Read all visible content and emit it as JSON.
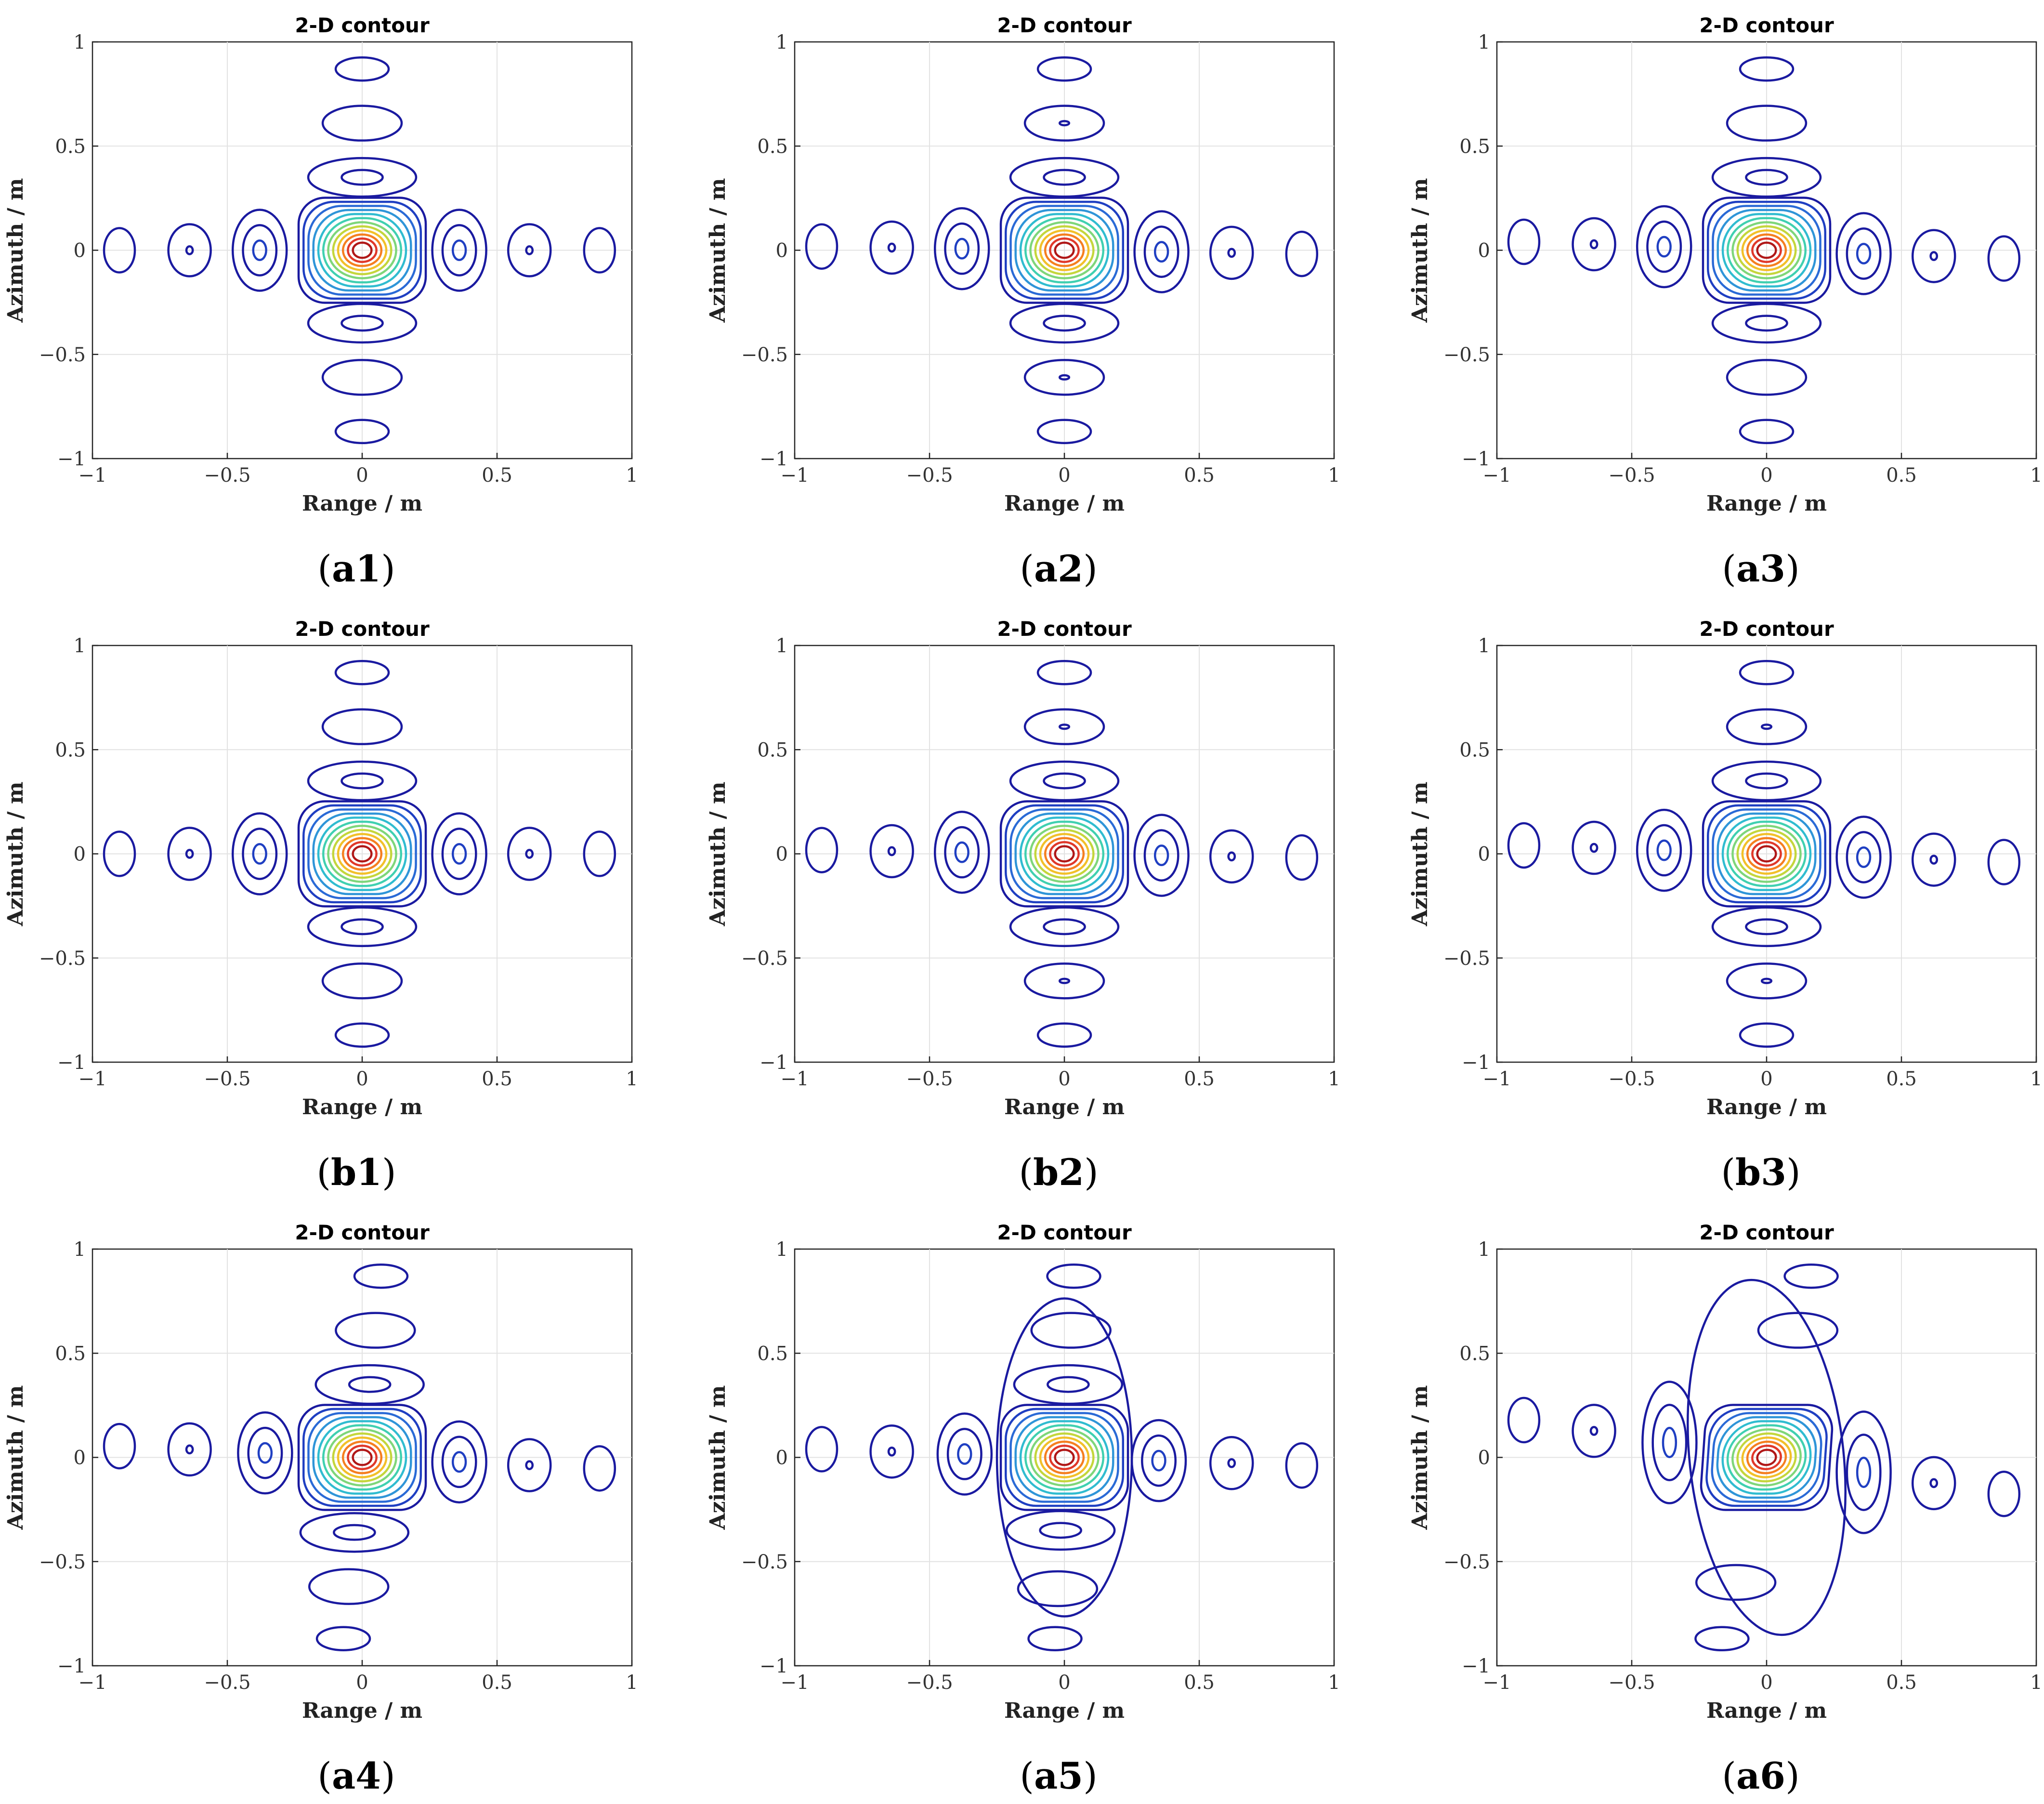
{
  "figure": {
    "panels": [
      {
        "id": "a1",
        "caption_letter": "a",
        "caption_number": "1"
      },
      {
        "id": "a2",
        "caption_letter": "a",
        "caption_number": "2"
      },
      {
        "id": "a3",
        "caption_letter": "a",
        "caption_number": "3"
      },
      {
        "id": "b1",
        "caption_letter": "b",
        "caption_number": "1"
      },
      {
        "id": "b2",
        "caption_letter": "b",
        "caption_number": "2"
      },
      {
        "id": "b3",
        "caption_letter": "b",
        "caption_number": "3"
      },
      {
        "id": "a4",
        "caption_letter": "a",
        "caption_number": "4"
      },
      {
        "id": "a5",
        "caption_letter": "a",
        "caption_number": "5"
      },
      {
        "id": "a6",
        "caption_letter": "a",
        "caption_number": "6"
      }
    ]
  },
  "chart_data": [
    {
      "panel": "a1",
      "type": "contour",
      "title": "2-D contour",
      "xlabel": "Range / m",
      "ylabel": "Azimuth / m",
      "xlim": [
        -1,
        1
      ],
      "ylim": [
        -1,
        1
      ],
      "xticks": [
        "−1",
        "−0.5",
        "0",
        "0.5",
        "1"
      ],
      "yticks": [
        "−1",
        "−0.5",
        "0",
        "0.5",
        "1"
      ],
      "grid": true,
      "peak": [
        0,
        0
      ],
      "range_sidelobes_x": [
        -0.9,
        -0.64,
        -0.38,
        0.36,
        0.62,
        0.88
      ],
      "azimuth_sidelobes_y": [
        0.87,
        0.61,
        0.35,
        -0.35,
        -0.61,
        -0.87
      ],
      "distortion": "none"
    },
    {
      "panel": "a2",
      "type": "contour",
      "title": "2-D contour",
      "xlabel": "Range / m",
      "ylabel": "Azimuth / m",
      "xlim": [
        -1,
        1
      ],
      "ylim": [
        -1,
        1
      ],
      "xticks": [
        "−1",
        "−0.5",
        "0",
        "0.5",
        "1"
      ],
      "yticks": [
        "−1",
        "−0.5",
        "0",
        "0.5",
        "1"
      ],
      "grid": true,
      "peak": [
        0,
        0
      ],
      "range_sidelobes_x": [
        -0.9,
        -0.64,
        -0.38,
        0.36,
        0.62,
        0.88
      ],
      "azimuth_sidelobes_y": [
        0.87,
        0.61,
        0.35,
        -0.35,
        -0.61,
        -0.87
      ],
      "distortion": "slight range skew"
    },
    {
      "panel": "a3",
      "type": "contour",
      "title": "2-D contour",
      "xlabel": "Range / m",
      "ylabel": "Azimuth / m",
      "xlim": [
        -1,
        1
      ],
      "ylim": [
        -1,
        1
      ],
      "xticks": [
        "−1",
        "−0.5",
        "0",
        "0.5",
        "1"
      ],
      "yticks": [
        "−1",
        "−0.5",
        "0",
        "0.5",
        "1"
      ],
      "grid": true,
      "peak": [
        0,
        0
      ],
      "range_sidelobes_x": [
        -0.9,
        -0.64,
        -0.38,
        0.36,
        0.62,
        0.88
      ],
      "azimuth_sidelobes_y": [
        0.87,
        0.61,
        0.35,
        -0.35,
        -0.61,
        -0.87
      ],
      "distortion": "range skew"
    },
    {
      "panel": "b1",
      "type": "contour",
      "title": "2-D contour",
      "xlabel": "Range / m",
      "ylabel": "Azimuth / m",
      "xlim": [
        -1,
        1
      ],
      "ylim": [
        -1,
        1
      ],
      "xticks": [
        "−1",
        "−0.5",
        "0",
        "0.5",
        "1"
      ],
      "yticks": [
        "−1",
        "−0.5",
        "0",
        "0.5",
        "1"
      ],
      "grid": true,
      "peak": [
        0,
        0
      ],
      "range_sidelobes_x": [
        -0.9,
        -0.64,
        -0.38,
        0.36,
        0.62,
        0.88
      ],
      "azimuth_sidelobes_y": [
        0.87,
        0.61,
        0.35,
        -0.35,
        -0.61,
        -0.87
      ],
      "distortion": "none"
    },
    {
      "panel": "b2",
      "type": "contour",
      "title": "2-D contour",
      "xlabel": "Range / m",
      "ylabel": "Azimuth / m",
      "xlim": [
        -1,
        1
      ],
      "ylim": [
        -1,
        1
      ],
      "xticks": [
        "−1",
        "−0.5",
        "0",
        "0.5",
        "1"
      ],
      "yticks": [
        "−1",
        "−0.5",
        "0",
        "0.5",
        "1"
      ],
      "grid": true,
      "peak": [
        0,
        0
      ],
      "range_sidelobes_x": [
        -0.9,
        -0.64,
        -0.38,
        0.36,
        0.62,
        0.88
      ],
      "azimuth_sidelobes_y": [
        0.87,
        0.61,
        0.35,
        -0.35,
        -0.61,
        -0.87
      ],
      "distortion": "slight range skew"
    },
    {
      "panel": "b3",
      "type": "contour",
      "title": "2-D contour",
      "xlabel": "Range / m",
      "ylabel": "Azimuth / m",
      "xlim": [
        -1,
        1
      ],
      "ylim": [
        -1,
        1
      ],
      "xticks": [
        "−1",
        "−0.5",
        "0",
        "0.5",
        "1"
      ],
      "yticks": [
        "−1",
        "−0.5",
        "0",
        "0.5",
        "1"
      ],
      "grid": true,
      "peak": [
        0,
        0
      ],
      "range_sidelobes_x": [
        -0.9,
        -0.64,
        -0.38,
        0.36,
        0.62,
        0.88
      ],
      "azimuth_sidelobes_y": [
        0.87,
        0.61,
        0.35,
        -0.35,
        -0.61,
        -0.87
      ],
      "distortion": "range skew"
    },
    {
      "panel": "a4",
      "type": "contour",
      "title": "2-D contour",
      "xlabel": "Range / m",
      "ylabel": "Azimuth / m",
      "xlim": [
        -1,
        1
      ],
      "ylim": [
        -1,
        1
      ],
      "xticks": [
        "−1",
        "−0.5",
        "0",
        "0.5",
        "1"
      ],
      "yticks": [
        "−1",
        "−0.5",
        "0",
        "0.5",
        "1"
      ],
      "grid": true,
      "peak": [
        0,
        0
      ],
      "range_sidelobes_x": [
        -0.9,
        -0.64,
        -0.36,
        0.36,
        0.62,
        0.88
      ],
      "azimuth_sidelobes_y": [
        0.87,
        0.61,
        0.35,
        -0.36,
        -0.62,
        -0.87
      ],
      "distortion": "skewed sidelobes"
    },
    {
      "panel": "a5",
      "type": "contour",
      "title": "2-D contour",
      "xlabel": "Range / m",
      "ylabel": "Azimuth / m",
      "xlim": [
        -1,
        1
      ],
      "ylim": [
        -1,
        1
      ],
      "xticks": [
        "−1",
        "−0.5",
        "0",
        "0.5",
        "1"
      ],
      "yticks": [
        "−1",
        "−0.5",
        "0",
        "0.5",
        "1"
      ],
      "grid": true,
      "peak": [
        0,
        0
      ],
      "range_sidelobes_x": [
        -0.9,
        -0.64,
        -0.37,
        0.35,
        0.62,
        0.88
      ],
      "azimuth_sidelobes_y": [
        0.87,
        0.61,
        0.35,
        -0.35,
        -0.63,
        -0.87
      ],
      "distortion": "merged azimuth sidelobes"
    },
    {
      "panel": "a6",
      "type": "contour",
      "title": "2-D contour",
      "xlabel": "Range / m",
      "ylabel": "Azimuth / m",
      "xlim": [
        -1,
        1
      ],
      "ylim": [
        -1,
        1
      ],
      "xticks": [
        "−1",
        "−0.5",
        "0",
        "0.5",
        "1"
      ],
      "yticks": [
        "−1",
        "−0.5",
        "0",
        "0.5",
        "1"
      ],
      "grid": true,
      "peak": [
        0,
        0
      ],
      "range_sidelobes_x": [
        -0.9,
        -0.64,
        -0.36,
        0.36,
        0.62,
        0.88
      ],
      "azimuth_sidelobes_y": [
        0.87,
        0.61,
        -0.6,
        -0.87
      ],
      "distortion": "strongly defocused, merged lobes"
    }
  ]
}
